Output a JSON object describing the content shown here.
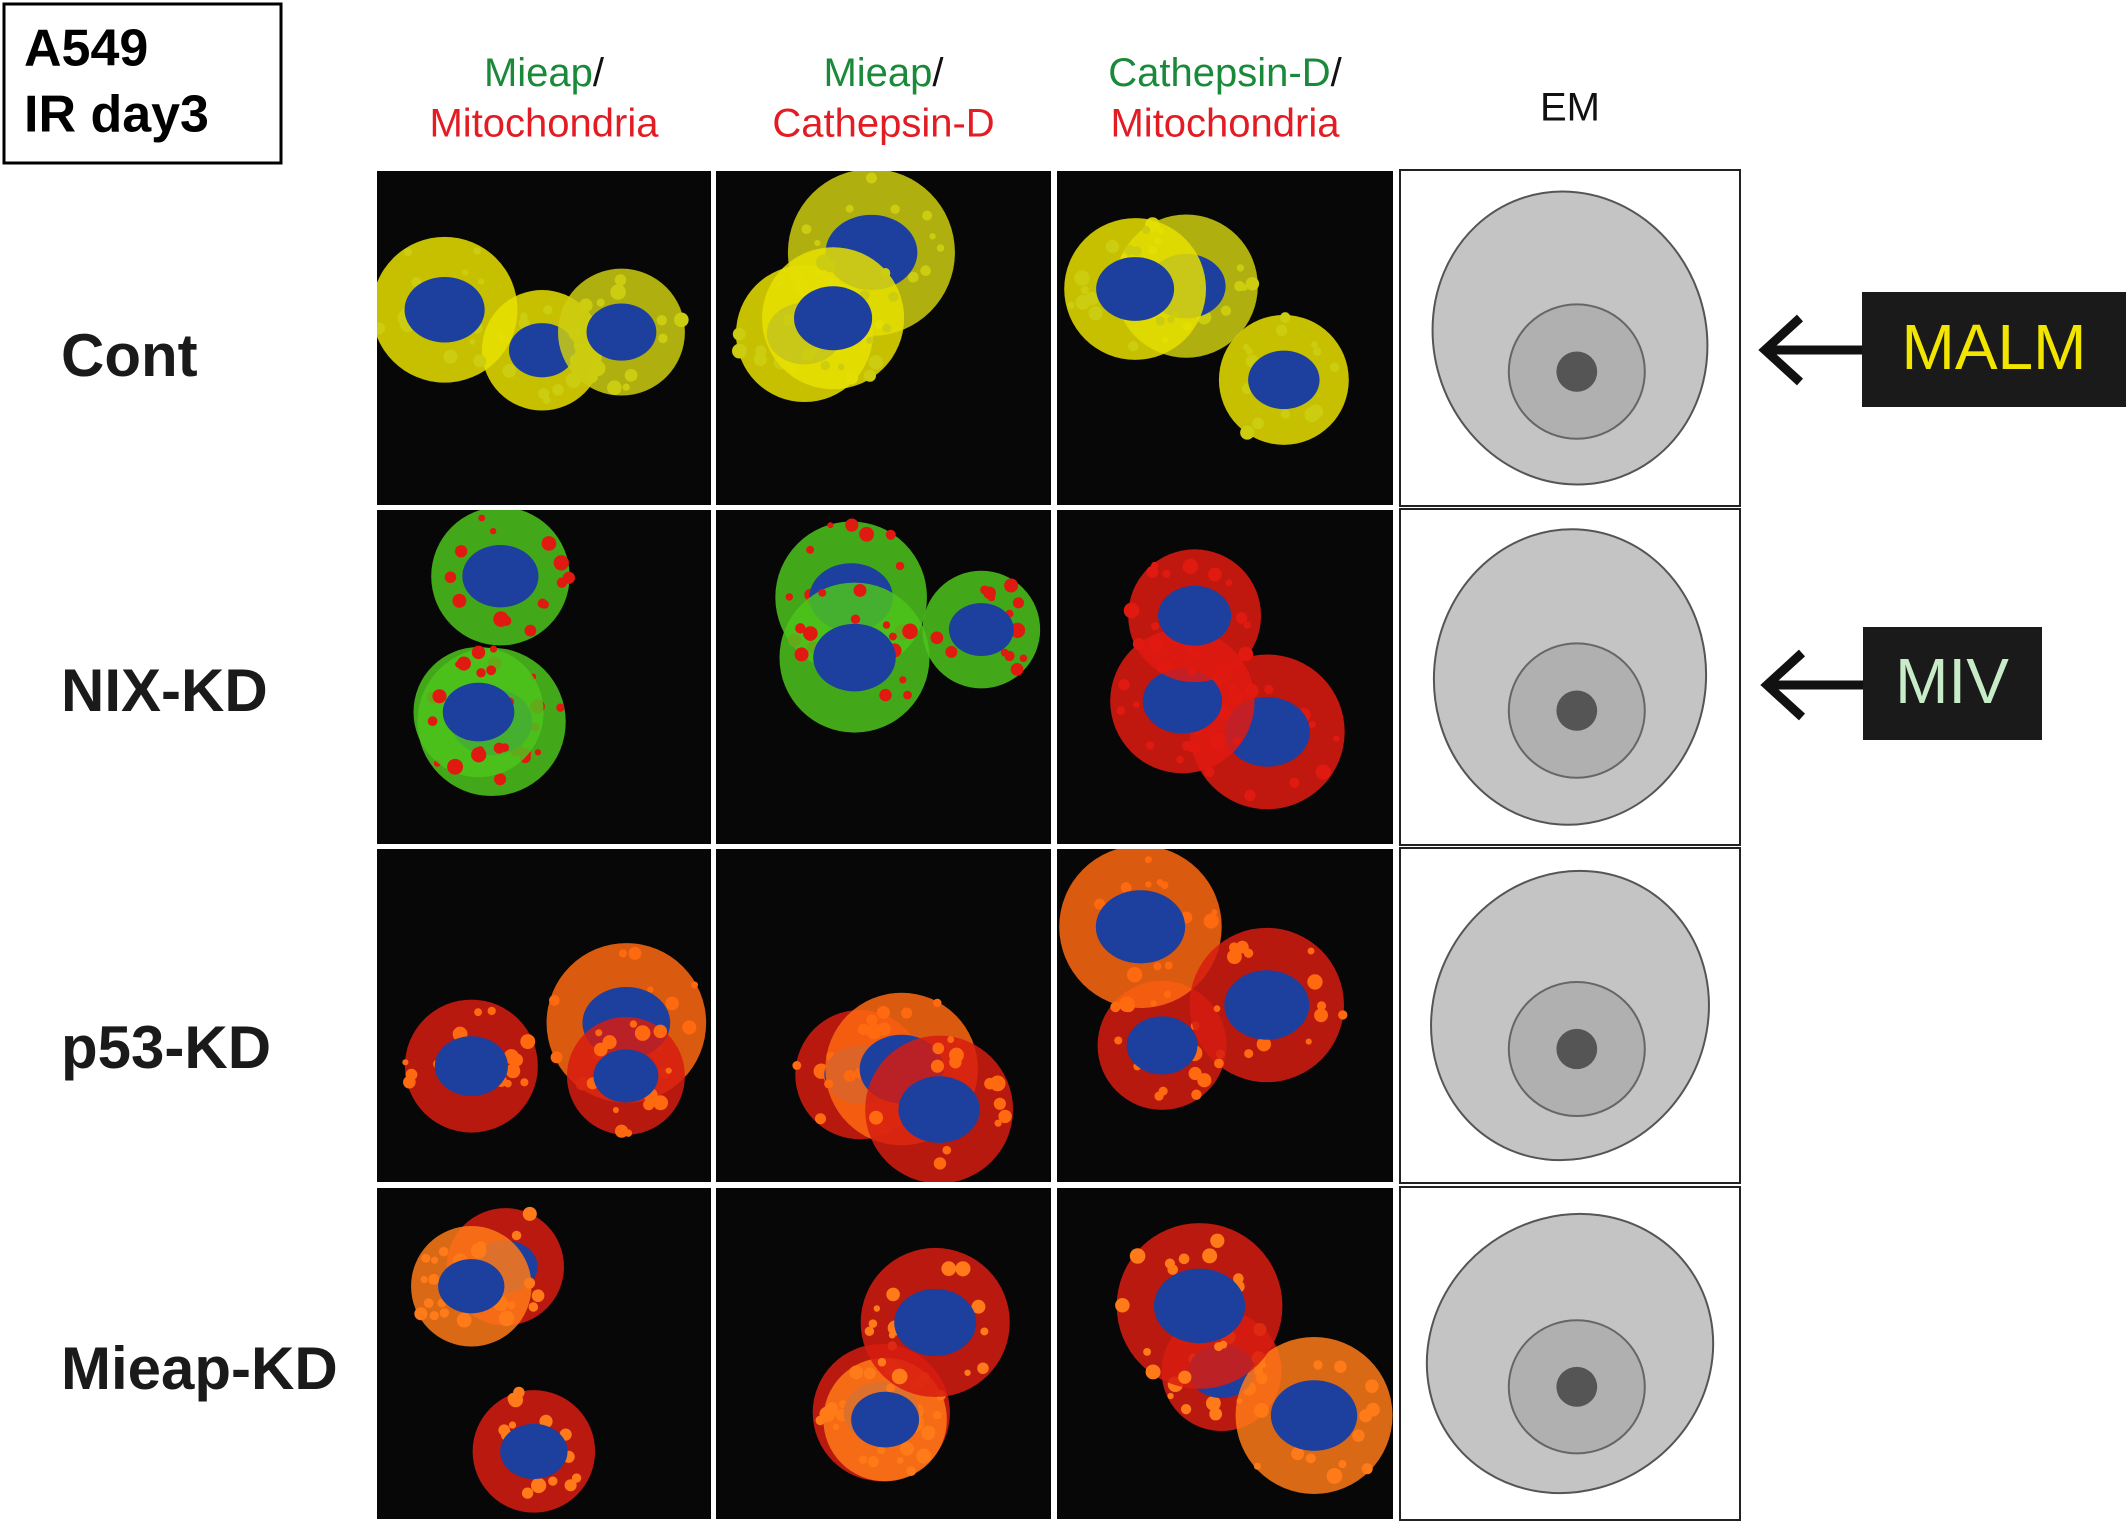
{
  "label_box": {
    "lines": [
      "A549",
      "IR day3"
    ]
  },
  "columns": [
    {
      "top": "Mieap",
      "sep": "/",
      "bottom": "Mitochondria"
    },
    {
      "top": "Mieap",
      "sep": "/",
      "bottom": "Cathepsin-D"
    },
    {
      "top": "Cathepsin-D",
      "sep": "/",
      "bottom": "Mitochondria"
    },
    {
      "top": "EM"
    }
  ],
  "rows": [
    "Cont",
    "NIX-KD",
    "p53-KD",
    "Mieap-KD"
  ],
  "callouts": [
    {
      "label": "MALM"
    },
    {
      "label": "MIV"
    }
  ]
}
